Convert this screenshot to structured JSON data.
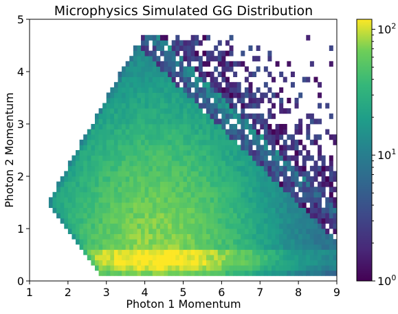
{
  "chart_data": {
    "type": "heatmap",
    "title": "Microphysics Simulated GG Distribution",
    "xlabel": "Photon 1 Momentum",
    "ylabel": "Photon 2 Momentum",
    "xlim": [
      1,
      9
    ],
    "ylim": [
      0,
      5
    ],
    "x_ticks": [
      1,
      2,
      3,
      4,
      5,
      6,
      7,
      8,
      9
    ],
    "y_ticks": [
      0,
      1,
      2,
      3,
      4,
      5
    ],
    "colorbar": {
      "scale": "log",
      "range": [
        1,
        120
      ],
      "colormap": "viridis",
      "ticks": [
        {
          "value": 1,
          "base": "10",
          "exp": "0"
        },
        {
          "value": 10,
          "base": "10",
          "exp": "1"
        },
        {
          "value": 100,
          "base": "10",
          "exp": "2"
        }
      ]
    },
    "grid": false,
    "bins": {
      "x_width": 0.1,
      "y_width": 0.1
    },
    "distribution": {
      "region": "photon2 >= 0.1, photon2 <= 1.3*(photon1-1.5)+1.55 (upper-left), photon2 <= 4.6 - 0.75*(photon1-4.5) falloff (upper-right)",
      "peak_region": "photon1 4 to 5, photon2 0.1 to 0.5",
      "peak_count": 120
    }
  }
}
